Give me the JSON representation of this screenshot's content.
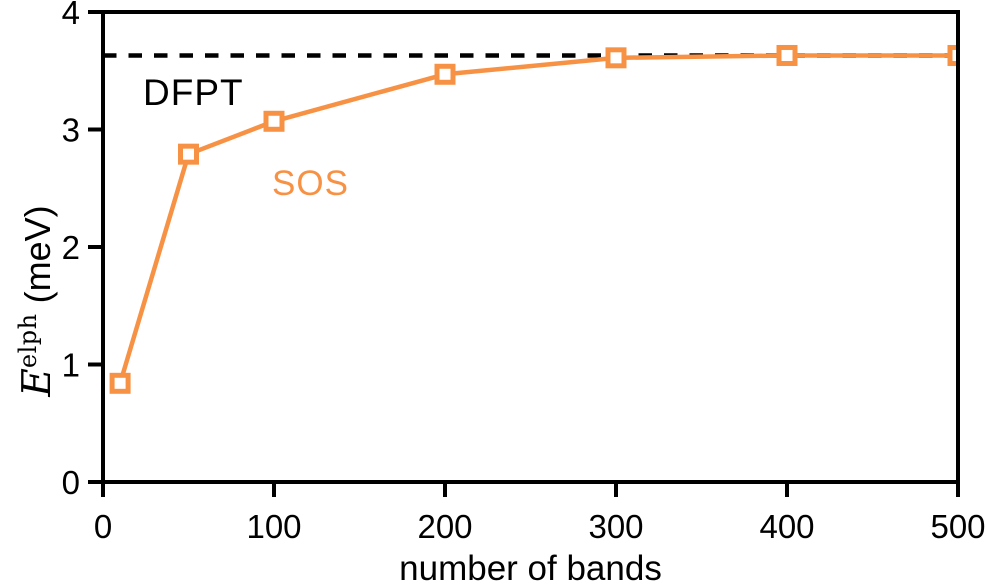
{
  "figure": {
    "background_color": "#ffffff",
    "x_axis_label": "number of bands",
    "y_axis_label": {
      "symbol": "E",
      "superscript": "elph",
      "unit": " (meV)"
    },
    "annotations": [
      {
        "id": "dfpt",
        "label": "DFPT",
        "color": "#000000"
      },
      {
        "id": "sos",
        "label": "SOS",
        "color": "#F79245"
      }
    ]
  },
  "chart_data": {
    "type": "line",
    "title": "",
    "xlabel": "number of bands",
    "ylabel": "E^elph (meV)",
    "xlim": [
      0,
      500
    ],
    "ylim": [
      0,
      4
    ],
    "xticks": [
      0,
      100,
      200,
      300,
      400,
      500
    ],
    "yticks": [
      0,
      1,
      2,
      3,
      4
    ],
    "grid": false,
    "legend_position": "inline-annotations",
    "axis_color": "#000000",
    "series": [
      {
        "name": "SOS",
        "style": "solid",
        "marker": "open-square",
        "color": "#F79245",
        "x": [
          10,
          50,
          100,
          200,
          300,
          400,
          500
        ],
        "y": [
          0.84,
          2.79,
          3.07,
          3.47,
          3.61,
          3.63,
          3.63
        ]
      },
      {
        "name": "DFPT",
        "style": "dashed-horizontal",
        "color": "#000000",
        "value": 3.63
      }
    ]
  }
}
